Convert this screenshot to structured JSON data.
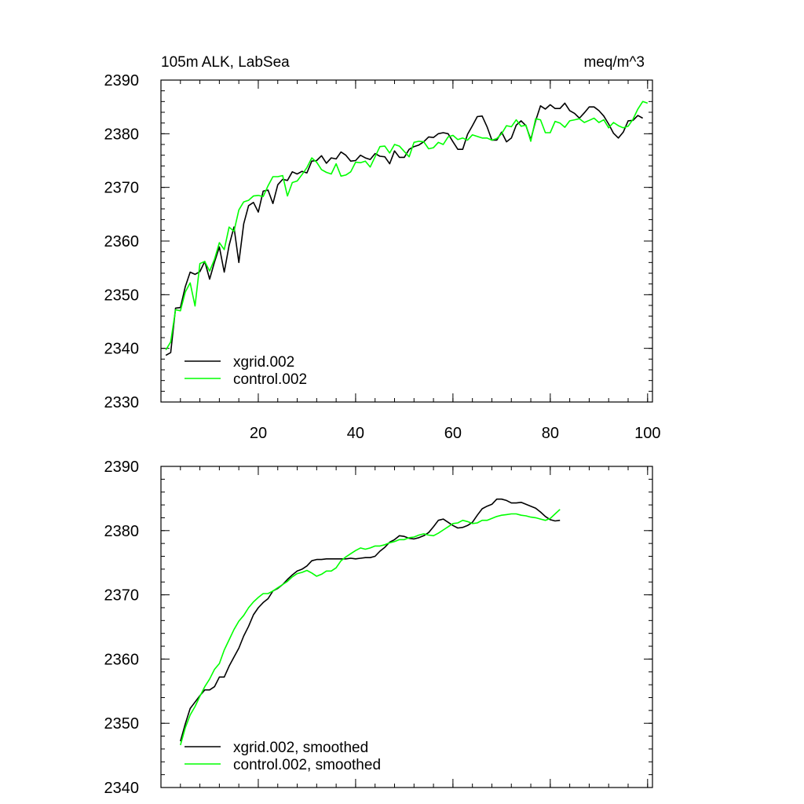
{
  "chart_data": [
    {
      "type": "line",
      "title": "105m ALK, LabSea",
      "units_label": "meq/m^3",
      "xlim": [
        0,
        101
      ],
      "ylim": [
        2330,
        2390
      ],
      "x_ticks": [
        20,
        40,
        60,
        80,
        100
      ],
      "y_ticks": [
        2330,
        2340,
        2350,
        2360,
        2370,
        2380,
        2390
      ],
      "x_tick_labels_shown": true,
      "grid": false,
      "legend_position": "bottom-left",
      "series": [
        {
          "name": "xgrid.002",
          "color": "#000000",
          "x_start": 1,
          "values": [
            2338.7,
            2339.2,
            2347.5,
            2347.6,
            2351.5,
            2354.2,
            2353.8,
            2354.3,
            2356.2,
            2352.9,
            2356.1,
            2358.9,
            2354.2,
            2359.2,
            2362.6,
            2356.0,
            2363.2,
            2366.6,
            2367.2,
            2365.4,
            2369.3,
            2369.5,
            2367.0,
            2370.5,
            2371.5,
            2371.3,
            2372.9,
            2372.5,
            2373.0,
            2372.7,
            2374.9,
            2375.0,
            2375.9,
            2374.5,
            2375.5,
            2375.3,
            2376.6,
            2376.0,
            2374.9,
            2375.0,
            2376.0,
            2375.5,
            2375.2,
            2376.3,
            2375.8,
            2375.7,
            2374.4,
            2376.8,
            2375.6,
            2375.6,
            2377.1,
            2377.6,
            2377.9,
            2378.5,
            2379.4,
            2379.3,
            2380.0,
            2380.2,
            2380.0,
            2378.5,
            2377.1,
            2377.1,
            2379.9,
            2381.5,
            2383.2,
            2383.3,
            2381.3,
            2378.8,
            2378.8,
            2380.3,
            2378.5,
            2379.2,
            2381.6,
            2382.4,
            2381.5,
            2378.9,
            2382.4,
            2385.2,
            2384.6,
            2385.4,
            2384.7,
            2384.7,
            2385.7,
            2384.3,
            2383.8,
            2382.9,
            2383.9,
            2385.0,
            2385.0,
            2384.3,
            2383.3,
            2381.8,
            2380.1,
            2379.2,
            2380.3,
            2382.4,
            2382.5,
            2383.4,
            2382.9
          ]
        },
        {
          "name": "control.002",
          "color": "#00ff00",
          "x_start": 1,
          "values": [
            2339.7,
            2341.2,
            2347.2,
            2347.0,
            2350.5,
            2352.2,
            2347.9,
            2355.8,
            2356.2,
            2354.4,
            2356.6,
            2359.7,
            2358.4,
            2362.6,
            2361.8,
            2365.8,
            2367.3,
            2367.6,
            2368.4,
            2368.5,
            2368.3,
            2370.3,
            2372.0,
            2372.0,
            2372.2,
            2368.4,
            2370.9,
            2371.2,
            2372.4,
            2373.7,
            2375.5,
            2374.7,
            2373.3,
            2372.8,
            2372.5,
            2374.4,
            2372.1,
            2372.3,
            2372.9,
            2374.7,
            2374.6,
            2374.9,
            2373.8,
            2375.7,
            2377.6,
            2377.7,
            2376.4,
            2378.0,
            2377.7,
            2376.7,
            2375.7,
            2378.4,
            2378.6,
            2378.5,
            2377.2,
            2377.4,
            2378.4,
            2378.0,
            2379.4,
            2379.7,
            2378.9,
            2379.2,
            2378.8,
            2379.8,
            2379.5,
            2379.2,
            2379.2,
            2378.8,
            2379.1,
            2380.0,
            2381.5,
            2381.3,
            2382.6,
            2381.4,
            2381.6,
            2378.6,
            2382.8,
            2382.6,
            2380.2,
            2380.2,
            2382.3,
            2382.0,
            2381.2,
            2382.4,
            2382.6,
            2382.8,
            2382.1,
            2382.5,
            2382.9,
            2382.1,
            2382.6,
            2381.1,
            2382.1,
            2381.5,
            2381.1,
            2381.4,
            2382.7,
            2384.6,
            2386.0,
            2385.7
          ]
        }
      ]
    },
    {
      "type": "line",
      "xlim": [
        0,
        101
      ],
      "ylim": [
        2340,
        2390
      ],
      "x_ticks": [
        20,
        40,
        60,
        80,
        100
      ],
      "y_ticks": [
        2340,
        2350,
        2360,
        2370,
        2380,
        2390
      ],
      "x_tick_labels_shown": false,
      "grid": false,
      "legend_position": "bottom-left",
      "series": [
        {
          "name": "xgrid.002, smoothed",
          "color": "#000000",
          "x_start": 4,
          "values": [
            2347.2,
            2349.9,
            2352.3,
            2353.3,
            2354.3,
            2355.2,
            2355.2,
            2355.7,
            2357.2,
            2357.2,
            2358.9,
            2360.3,
            2361.7,
            2363.6,
            2365.1,
            2366.9,
            2368.0,
            2368.8,
            2369.4,
            2370.6,
            2371.0,
            2371.6,
            2372.4,
            2373.1,
            2373.7,
            2374.0,
            2374.5,
            2375.3,
            2375.5,
            2375.5,
            2375.6,
            2375.6,
            2375.6,
            2375.6,
            2375.6,
            2375.7,
            2375.6,
            2375.7,
            2375.8,
            2375.8,
            2376.0,
            2376.8,
            2377.4,
            2378.2,
            2378.6,
            2379.2,
            2379.1,
            2378.8,
            2378.7,
            2378.9,
            2379.2,
            2379.7,
            2380.6,
            2381.6,
            2381.8,
            2381.3,
            2380.8,
            2380.4,
            2380.5,
            2380.8,
            2381.3,
            2382.4,
            2383.4,
            2383.8,
            2384.1,
            2384.9,
            2384.9,
            2384.7,
            2384.3,
            2384.3,
            2384.4,
            2384.1,
            2383.8,
            2383.5,
            2382.9,
            2382.2,
            2381.7,
            2381.5,
            2381.6
          ]
        },
        {
          "name": "control.002, smoothed",
          "color": "#00ff00",
          "x_start": 4,
          "values": [
            2346.6,
            2349.3,
            2351.3,
            2352.6,
            2354.2,
            2355.7,
            2356.9,
            2358.4,
            2359.3,
            2361.4,
            2363.0,
            2364.6,
            2365.9,
            2366.8,
            2368.0,
            2368.9,
            2369.6,
            2370.2,
            2370.2,
            2370.6,
            2371.1,
            2371.6,
            2372.1,
            2372.8,
            2373.3,
            2373.5,
            2373.8,
            2373.4,
            2372.9,
            2373.2,
            2373.7,
            2373.7,
            2374.2,
            2375.3,
            2375.9,
            2376.4,
            2376.9,
            2377.3,
            2377.1,
            2377.3,
            2377.6,
            2377.6,
            2377.8,
            2378.1,
            2378.3,
            2378.6,
            2378.6,
            2378.9,
            2379.0,
            2379.3,
            2379.5,
            2379.3,
            2379.2,
            2379.6,
            2380.1,
            2380.6,
            2381.1,
            2381.2,
            2381.6,
            2381.4,
            2381.1,
            2381.2,
            2381.6,
            2381.6,
            2381.9,
            2382.2,
            2382.4,
            2382.5,
            2382.6,
            2382.6,
            2382.4,
            2382.3,
            2382.1,
            2382.0,
            2381.8,
            2381.6,
            2381.9,
            2382.6,
            2383.3
          ]
        }
      ]
    }
  ]
}
